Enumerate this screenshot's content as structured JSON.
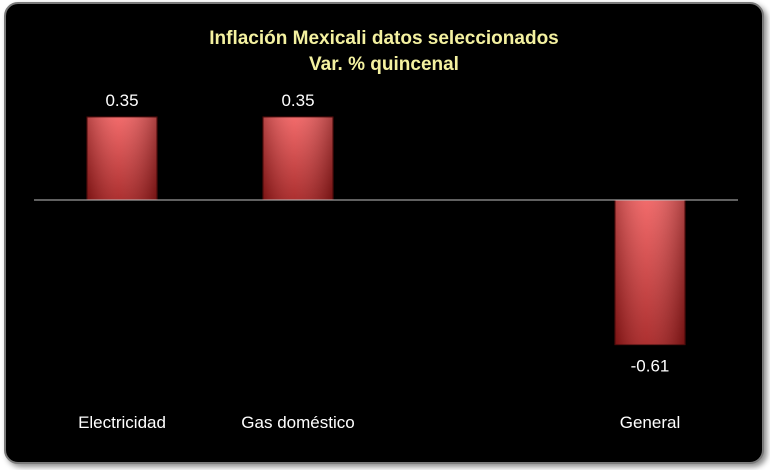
{
  "chart_data": {
    "type": "bar",
    "title": "Inflación Mexicali datos seleccionados",
    "subtitle": "Var. % quincenal",
    "categories": [
      "Electricidad",
      "Gas doméstico",
      "",
      "General"
    ],
    "values": [
      0.35,
      0.35,
      null,
      -0.61
    ],
    "data_labels": [
      "0.35",
      "0.35",
      "",
      "-0.61"
    ],
    "ylim": [
      -0.61,
      0.35
    ],
    "grid": false,
    "legend": "none",
    "colors": {
      "bar_top": "#f05a5a",
      "bar_bottom": "#a31818",
      "axis": "#bfbfbf",
      "background": "#000000",
      "title": "#f4f1a0"
    }
  }
}
